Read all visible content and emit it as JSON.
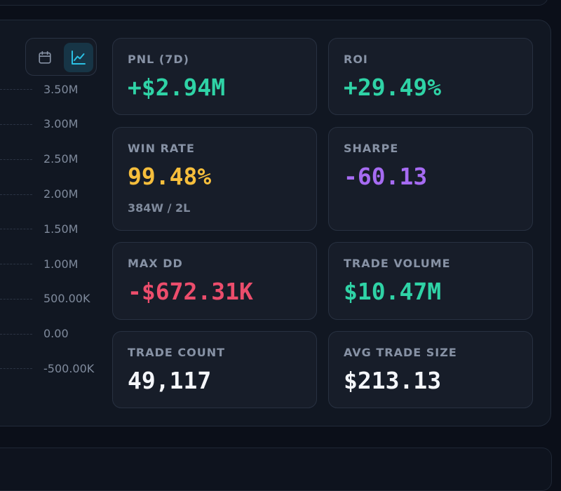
{
  "colors": {
    "green": "#2fd3a6",
    "yellow": "#f6be3c",
    "purple": "#a66bf2",
    "red": "#ec4d6c",
    "white": "#f4f6fa",
    "accent": "#2bc0e4"
  },
  "toggle": {
    "calendar_icon": "calendar-icon",
    "chart_icon": "line-chart-icon",
    "active": "chart"
  },
  "axis": {
    "ticks": [
      "3.50M",
      "3.00M",
      "2.50M",
      "2.00M",
      "1.50M",
      "1.00M",
      "500.00K",
      "0.00",
      "-500.00K"
    ]
  },
  "stats": {
    "pnl": {
      "label": "PNL (7D)",
      "value": "+$2.94M"
    },
    "roi": {
      "label": "ROI",
      "value": "+29.49%"
    },
    "win_rate": {
      "label": "WIN RATE",
      "value": "99.48%",
      "sub": "384W / 2L"
    },
    "sharpe": {
      "label": "SHARPE",
      "value": "-60.13"
    },
    "max_dd": {
      "label": "MAX DD",
      "value": "-$672.31K"
    },
    "trade_volume": {
      "label": "TRADE VOLUME",
      "value": "$10.47M"
    },
    "trade_count": {
      "label": "TRADE COUNT",
      "value": "49,117"
    },
    "avg_trade_size": {
      "label": "AVG TRADE SIZE",
      "value": "$213.13"
    }
  }
}
